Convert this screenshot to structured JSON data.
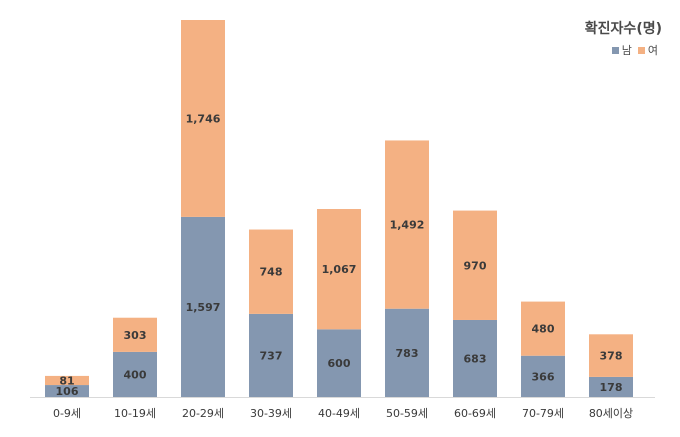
{
  "chart_data": {
    "type": "bar",
    "stacked": true,
    "legend_title": "확진자수(명)",
    "legend_position": "top-right",
    "grid": false,
    "categories": [
      "0-9세",
      "10-19세",
      "20-29세",
      "30-39세",
      "40-49세",
      "50-59세",
      "60-69세",
      "70-79세",
      "80세이상"
    ],
    "series": [
      {
        "name": "남",
        "color": "#8497B0",
        "values": [
          106,
          400,
          1597,
          737,
          600,
          783,
          683,
          366,
          178
        ],
        "labels": [
          "106",
          "400",
          "1,597",
          "737",
          "600",
          "783",
          "683",
          "366",
          "178"
        ]
      },
      {
        "name": "여",
        "color": "#F4B183",
        "values": [
          81,
          303,
          1746,
          748,
          1067,
          1492,
          970,
          480,
          378
        ],
        "labels": [
          "81",
          "303",
          "1,746",
          "748",
          "1,067",
          "1,492",
          "970",
          "480",
          "378"
        ]
      }
    ],
    "ylim": [
      0,
      3343
    ]
  }
}
